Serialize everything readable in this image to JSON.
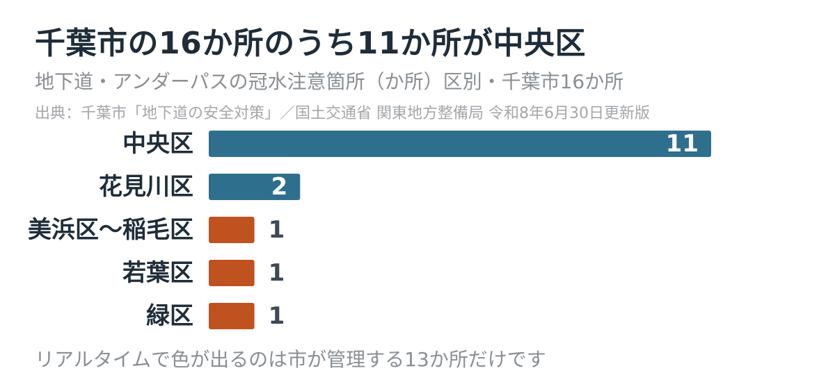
{
  "title": "千葉市の16か所のうち11か所が中央区",
  "subtitle": "地下道・アンダーパスの冠水注意箇所（か所）区別・千葉市16か所",
  "source": "出典：千葉市「地下道の安全対策」／国土交通省 関東地方整備局 令和8年6月30日更新版",
  "note": "リアルタイムで色が出るのは市が管理する13か所だけです",
  "colors": {
    "primary": "#2e6f8e",
    "secondary": "#c0521f",
    "value_inside": "#ffffff",
    "value_outside": "#3d4a56"
  },
  "chart_data": {
    "type": "bar",
    "orientation": "horizontal",
    "categories": [
      "中央区",
      "花見川区",
      "美浜区〜稲毛区",
      "若葉区",
      "緑区"
    ],
    "values": [
      11,
      2,
      1,
      1,
      1
    ],
    "bar_color_groups": [
      "primary",
      "primary",
      "secondary",
      "secondary",
      "secondary"
    ],
    "title": "千葉市の16か所のうち11か所が中央区",
    "xlabel": "",
    "ylabel": "",
    "xlim": [
      0,
      11
    ],
    "grid": false,
    "legend": "none"
  }
}
